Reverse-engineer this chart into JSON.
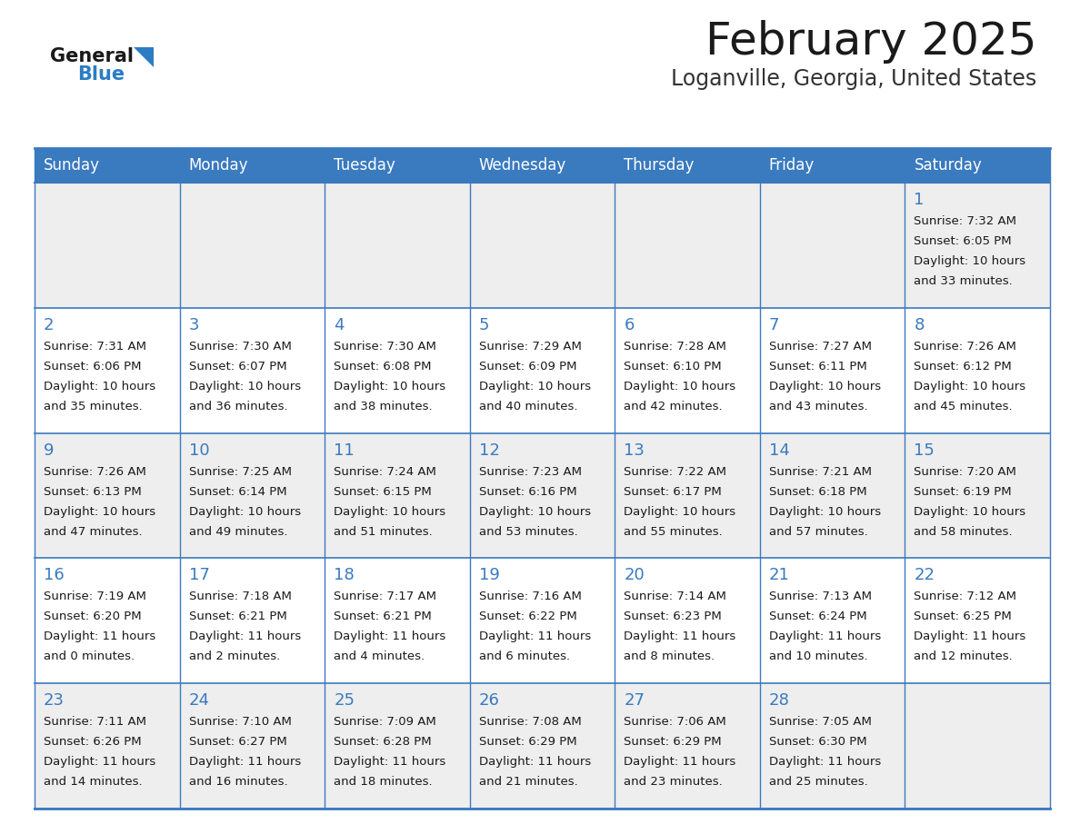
{
  "title": "February 2025",
  "subtitle": "Loganville, Georgia, United States",
  "header_bg_color": "#3a7abf",
  "header_text_color": "#ffffff",
  "border_color": "#3a7abf",
  "day_headers": [
    "Sunday",
    "Monday",
    "Tuesday",
    "Wednesday",
    "Thursday",
    "Friday",
    "Saturday"
  ],
  "title_color": "#1a1a1a",
  "subtitle_color": "#333333",
  "day_num_color": "#3a7abf",
  "cell_text_color": "#1a1a1a",
  "row_bg_odd": "#eeeeee",
  "row_bg_even": "#ffffff",
  "logo_text_color": "#1a1a1a",
  "logo_blue_color": "#2b7cc4",
  "calendar": [
    [
      null,
      null,
      null,
      null,
      null,
      null,
      {
        "day": 1,
        "sunrise": "7:32 AM",
        "sunset": "6:05 PM",
        "daylight_line1": "Daylight: 10 hours",
        "daylight_line2": "and 33 minutes."
      }
    ],
    [
      {
        "day": 2,
        "sunrise": "7:31 AM",
        "sunset": "6:06 PM",
        "daylight_line1": "Daylight: 10 hours",
        "daylight_line2": "and 35 minutes."
      },
      {
        "day": 3,
        "sunrise": "7:30 AM",
        "sunset": "6:07 PM",
        "daylight_line1": "Daylight: 10 hours",
        "daylight_line2": "and 36 minutes."
      },
      {
        "day": 4,
        "sunrise": "7:30 AM",
        "sunset": "6:08 PM",
        "daylight_line1": "Daylight: 10 hours",
        "daylight_line2": "and 38 minutes."
      },
      {
        "day": 5,
        "sunrise": "7:29 AM",
        "sunset": "6:09 PM",
        "daylight_line1": "Daylight: 10 hours",
        "daylight_line2": "and 40 minutes."
      },
      {
        "day": 6,
        "sunrise": "7:28 AM",
        "sunset": "6:10 PM",
        "daylight_line1": "Daylight: 10 hours",
        "daylight_line2": "and 42 minutes."
      },
      {
        "day": 7,
        "sunrise": "7:27 AM",
        "sunset": "6:11 PM",
        "daylight_line1": "Daylight: 10 hours",
        "daylight_line2": "and 43 minutes."
      },
      {
        "day": 8,
        "sunrise": "7:26 AM",
        "sunset": "6:12 PM",
        "daylight_line1": "Daylight: 10 hours",
        "daylight_line2": "and 45 minutes."
      }
    ],
    [
      {
        "day": 9,
        "sunrise": "7:26 AM",
        "sunset": "6:13 PM",
        "daylight_line1": "Daylight: 10 hours",
        "daylight_line2": "and 47 minutes."
      },
      {
        "day": 10,
        "sunrise": "7:25 AM",
        "sunset": "6:14 PM",
        "daylight_line1": "Daylight: 10 hours",
        "daylight_line2": "and 49 minutes."
      },
      {
        "day": 11,
        "sunrise": "7:24 AM",
        "sunset": "6:15 PM",
        "daylight_line1": "Daylight: 10 hours",
        "daylight_line2": "and 51 minutes."
      },
      {
        "day": 12,
        "sunrise": "7:23 AM",
        "sunset": "6:16 PM",
        "daylight_line1": "Daylight: 10 hours",
        "daylight_line2": "and 53 minutes."
      },
      {
        "day": 13,
        "sunrise": "7:22 AM",
        "sunset": "6:17 PM",
        "daylight_line1": "Daylight: 10 hours",
        "daylight_line2": "and 55 minutes."
      },
      {
        "day": 14,
        "sunrise": "7:21 AM",
        "sunset": "6:18 PM",
        "daylight_line1": "Daylight: 10 hours",
        "daylight_line2": "and 57 minutes."
      },
      {
        "day": 15,
        "sunrise": "7:20 AM",
        "sunset": "6:19 PM",
        "daylight_line1": "Daylight: 10 hours",
        "daylight_line2": "and 58 minutes."
      }
    ],
    [
      {
        "day": 16,
        "sunrise": "7:19 AM",
        "sunset": "6:20 PM",
        "daylight_line1": "Daylight: 11 hours",
        "daylight_line2": "and 0 minutes."
      },
      {
        "day": 17,
        "sunrise": "7:18 AM",
        "sunset": "6:21 PM",
        "daylight_line1": "Daylight: 11 hours",
        "daylight_line2": "and 2 minutes."
      },
      {
        "day": 18,
        "sunrise": "7:17 AM",
        "sunset": "6:21 PM",
        "daylight_line1": "Daylight: 11 hours",
        "daylight_line2": "and 4 minutes."
      },
      {
        "day": 19,
        "sunrise": "7:16 AM",
        "sunset": "6:22 PM",
        "daylight_line1": "Daylight: 11 hours",
        "daylight_line2": "and 6 minutes."
      },
      {
        "day": 20,
        "sunrise": "7:14 AM",
        "sunset": "6:23 PM",
        "daylight_line1": "Daylight: 11 hours",
        "daylight_line2": "and 8 minutes."
      },
      {
        "day": 21,
        "sunrise": "7:13 AM",
        "sunset": "6:24 PM",
        "daylight_line1": "Daylight: 11 hours",
        "daylight_line2": "and 10 minutes."
      },
      {
        "day": 22,
        "sunrise": "7:12 AM",
        "sunset": "6:25 PM",
        "daylight_line1": "Daylight: 11 hours",
        "daylight_line2": "and 12 minutes."
      }
    ],
    [
      {
        "day": 23,
        "sunrise": "7:11 AM",
        "sunset": "6:26 PM",
        "daylight_line1": "Daylight: 11 hours",
        "daylight_line2": "and 14 minutes."
      },
      {
        "day": 24,
        "sunrise": "7:10 AM",
        "sunset": "6:27 PM",
        "daylight_line1": "Daylight: 11 hours",
        "daylight_line2": "and 16 minutes."
      },
      {
        "day": 25,
        "sunrise": "7:09 AM",
        "sunset": "6:28 PM",
        "daylight_line1": "Daylight: 11 hours",
        "daylight_line2": "and 18 minutes."
      },
      {
        "day": 26,
        "sunrise": "7:08 AM",
        "sunset": "6:29 PM",
        "daylight_line1": "Daylight: 11 hours",
        "daylight_line2": "and 21 minutes."
      },
      {
        "day": 27,
        "sunrise": "7:06 AM",
        "sunset": "6:29 PM",
        "daylight_line1": "Daylight: 11 hours",
        "daylight_line2": "and 23 minutes."
      },
      {
        "day": 28,
        "sunrise": "7:05 AM",
        "sunset": "6:30 PM",
        "daylight_line1": "Daylight: 11 hours",
        "daylight_line2": "and 25 minutes."
      },
      null
    ]
  ]
}
